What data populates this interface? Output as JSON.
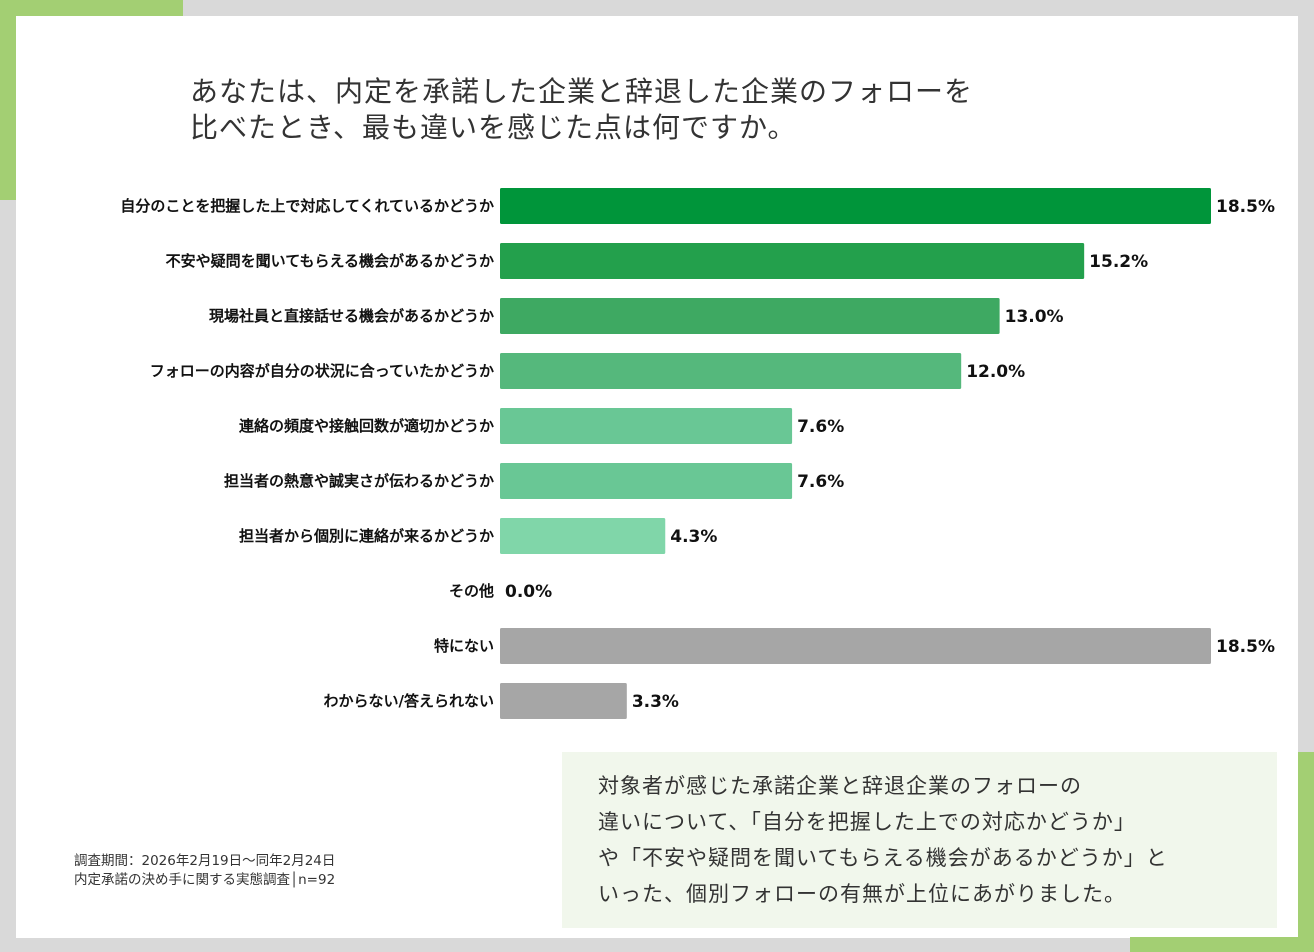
{
  "title": {
    "lines": [
      "あなたは、内定を承諾した企業と辞退した企業のフォローを",
      "比べたとき、最も違いを感じた点は何ですか。"
    ]
  },
  "chart_data": {
    "type": "bar",
    "orientation": "horizontal",
    "title": "あなたは、内定を承諾した企業と辞退した企業のフォローを比べたとき、最も違いを感じた点は何ですか。",
    "xlabel": "",
    "ylabel": "",
    "unit": "%",
    "grid": false,
    "xlim": [
      0,
      18.5
    ],
    "categories": [
      "自分のことを把握した上で対応してくれているかどうか",
      "不安や疑問を聞いてもらえる機会があるかどうか",
      "現場社員と直接話せる機会があるかどうか",
      "フォローの内容が自分の状況に合っていたかどうか",
      "連絡の頻度や接触回数が適切かどうか",
      "担当者の熱意や誠実さが伝わるかどうか",
      "担当者から個別に連絡が来るかどうか",
      "その他",
      "特にない",
      "わからない/答えられない"
    ],
    "values": [
      18.5,
      15.2,
      13.0,
      12.0,
      7.6,
      7.6,
      4.3,
      0.0,
      18.5,
      3.3
    ],
    "value_labels": [
      "18.5%",
      "15.2%",
      "13.0%",
      "12.0%",
      "7.6%",
      "7.6%",
      "4.3%",
      "0.0%",
      "18.5%",
      "3.3%"
    ],
    "colors": [
      "#00953a",
      "#23a04c",
      "#3ea962",
      "#55b87c",
      "#69c795",
      "#69c795",
      "#80d6a9",
      "#80d6a9",
      "#a6a6a6",
      "#a6a6a6"
    ]
  },
  "footnote": {
    "lines": [
      "調査期間：2026年2月19日～同年2月24日",
      "内定承諾の決め手に関する実態調査│n=92"
    ]
  },
  "callout": {
    "lines": [
      "対象者が感じた承諾企業と辞退企業のフォローの",
      "違いについて、「自分を把握した上での対応かどうか」",
      "や「不安や疑問を聞いてもらえる機会があるかどうか」と",
      "いった、個別フォローの有無が上位にあがりました。"
    ]
  },
  "colors": {
    "accent": "#a3cf73",
    "background": "#d9d9d9",
    "callout_bg": "#f1f7ec"
  }
}
